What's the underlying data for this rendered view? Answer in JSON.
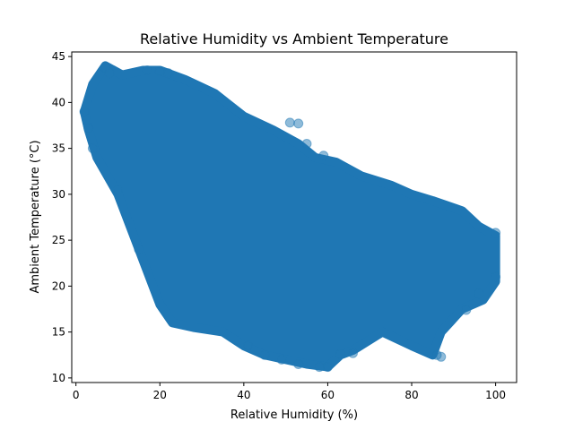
{
  "chart_data": {
    "type": "scatter",
    "title": "Relative Humidity vs Ambient Temperature",
    "xlabel": "Relative Humidity (%)",
    "ylabel": "Ambient Temperature (°C)",
    "xlim": [
      -1,
      105
    ],
    "ylim": [
      9.5,
      45.5
    ],
    "xticks": [
      0,
      20,
      40,
      60,
      80,
      100
    ],
    "yticks": [
      10,
      15,
      20,
      25,
      30,
      35,
      40,
      45
    ],
    "grid": false,
    "legend": "none",
    "marker_color": "#1f77b4",
    "marker_alpha": 0.5,
    "series": [
      {
        "boundary": [
          [
            2,
            39
          ],
          [
            4,
            42
          ],
          [
            7,
            44
          ],
          [
            11,
            43
          ],
          [
            16,
            43.5
          ],
          [
            20,
            43.5
          ],
          [
            26,
            42.5
          ],
          [
            33,
            41
          ],
          [
            40,
            38.5
          ],
          [
            47,
            37
          ],
          [
            53,
            35.5
          ],
          [
            57,
            34
          ],
          [
            62,
            33.5
          ],
          [
            68,
            32
          ],
          [
            75,
            31
          ],
          [
            80,
            30
          ],
          [
            85,
            29.3
          ],
          [
            92,
            28.2
          ],
          [
            96,
            26.5
          ],
          [
            100,
            25.5
          ],
          [
            100,
            20.5
          ],
          [
            97,
            18.5
          ],
          [
            92,
            17.5
          ],
          [
            87,
            15
          ],
          [
            85,
            12.5
          ],
          [
            80,
            13.5
          ],
          [
            73,
            15
          ],
          [
            66,
            13
          ],
          [
            63,
            12.5
          ],
          [
            60,
            11.2
          ],
          [
            55,
            11.5
          ],
          [
            50,
            12
          ],
          [
            45,
            12.5
          ],
          [
            40,
            13.5
          ],
          [
            35,
            15
          ],
          [
            28,
            15.5
          ],
          [
            23,
            16
          ],
          [
            20,
            18
          ],
          [
            15,
            24
          ],
          [
            10,
            30
          ],
          [
            5,
            34
          ],
          [
            3,
            37
          ]
        ],
        "points": [
          [
            7,
            43.8
          ],
          [
            8,
            43.2
          ],
          [
            17,
            43.5
          ],
          [
            20,
            43.4
          ],
          [
            22,
            43.2
          ],
          [
            51,
            37.8
          ],
          [
            53,
            37.7
          ],
          [
            55,
            35.5
          ],
          [
            59,
            34.2
          ],
          [
            86,
            12.5
          ],
          [
            87,
            12.3
          ],
          [
            66,
            12.7
          ],
          [
            63,
            12.6
          ],
          [
            60,
            11.2
          ],
          [
            58,
            11.2
          ],
          [
            53,
            11.5
          ],
          [
            49,
            12.0
          ],
          [
            45,
            12.5
          ],
          [
            41,
            13.5
          ],
          [
            100,
            25.8
          ],
          [
            100,
            21.0
          ],
          [
            96,
            19.2
          ],
          [
            93,
            17.4
          ],
          [
            2,
            39.0
          ],
          [
            3,
            37.2
          ],
          [
            4,
            35.0
          ],
          [
            10,
            30.5
          ],
          [
            15,
            24.0
          ]
        ]
      }
    ]
  }
}
